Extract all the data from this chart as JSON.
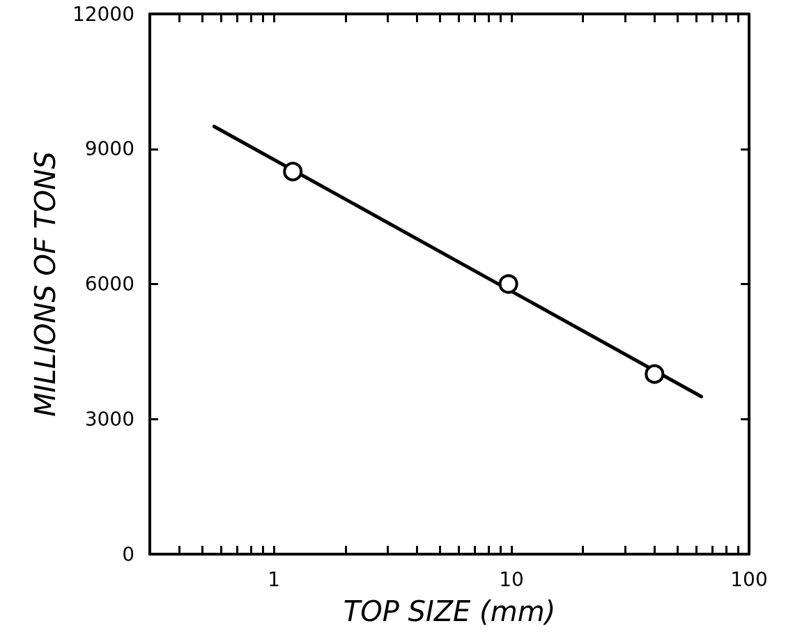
{
  "chart_data": {
    "type": "scatter",
    "xlabel": "TOP SIZE (mm)",
    "ylabel": "MILLIONS OF TONS",
    "log": "x",
    "grid": false,
    "marker": "circle",
    "xlim": [
      0.3,
      100
    ],
    "xticks": [
      {
        "value": 0.3,
        "label": null
      },
      {
        "value": 0.4,
        "label": null
      },
      {
        "value": 0.5,
        "label": null
      },
      {
        "value": 0.6,
        "label": null
      },
      {
        "value": 0.7,
        "label": null
      },
      {
        "value": 0.8,
        "label": null
      },
      {
        "value": 0.9,
        "label": null
      },
      1,
      {
        "value": 2,
        "label": null
      },
      {
        "value": 3,
        "label": null
      },
      {
        "value": 4,
        "label": null
      },
      {
        "value": 5,
        "label": null
      },
      {
        "value": 6,
        "label": null
      },
      {
        "value": 7,
        "label": null
      },
      {
        "value": 8,
        "label": null
      },
      {
        "value": 9,
        "label": null
      },
      10,
      {
        "value": 20,
        "label": null
      },
      {
        "value": 30,
        "label": null
      },
      {
        "value": 40,
        "label": null
      },
      {
        "value": 50,
        "label": null
      },
      {
        "value": 60,
        "label": null
      },
      {
        "value": 70,
        "label": null
      },
      {
        "value": 80,
        "label": null
      },
      {
        "value": 90,
        "label": null
      },
      100
    ],
    "ylim": [
      0,
      12000
    ],
    "yticks": [
      0,
      3000,
      6000,
      9000,
      12000
    ],
    "series": [
      {
        "type": "scatter",
        "x": [
          1.2,
          9.7,
          40
        ],
        "values": [
          8500,
          6000,
          4000
        ],
        "color": "#000000"
      },
      {
        "type": "line",
        "x": [
          0.56,
          63
        ],
        "values": [
          9500,
          3500
        ],
        "color": "#000000",
        "marker": "none",
        "line_style": "solid"
      }
    ]
  }
}
